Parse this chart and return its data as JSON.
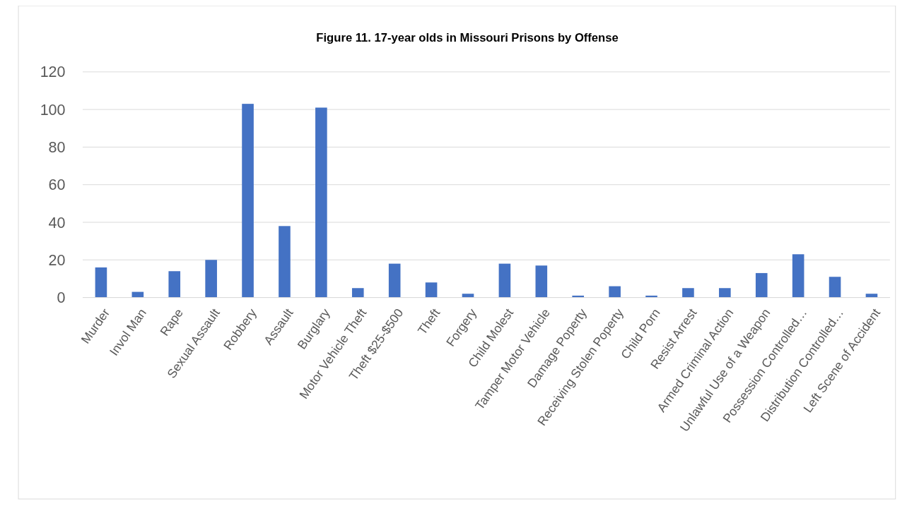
{
  "chart_data": {
    "type": "bar",
    "title": "Figure 11.  17-year olds in Missouri Prisons by Offense",
    "categories": [
      "Murder",
      "Invol Man",
      "Rape",
      "Sexual Assault",
      "Robbery",
      "Assault",
      "Burglary",
      "Motor Vehicle Theft",
      "Theft $25-$500",
      "Theft",
      "Forgery",
      "Child Molest",
      "Tamper Motor Vehicle",
      "Damage Poperty",
      "Receiving Stolen Poperty",
      "Child Porn",
      "Resist Arrest",
      "Armed Criminal Action",
      "Unlawful Use of a Weapon",
      "Possession Controlled…",
      "Distribution Controlled…",
      "Left Scene of Accident"
    ],
    "values": [
      16,
      3,
      14,
      20,
      103,
      38,
      101,
      5,
      18,
      8,
      2,
      18,
      17,
      1,
      6,
      1,
      5,
      5,
      13,
      23,
      11,
      2
    ],
    "color": "#4472c4",
    "ylim": [
      0,
      120
    ],
    "yticks": [
      0,
      20,
      40,
      60,
      80,
      100,
      120
    ],
    "grid": "y"
  }
}
